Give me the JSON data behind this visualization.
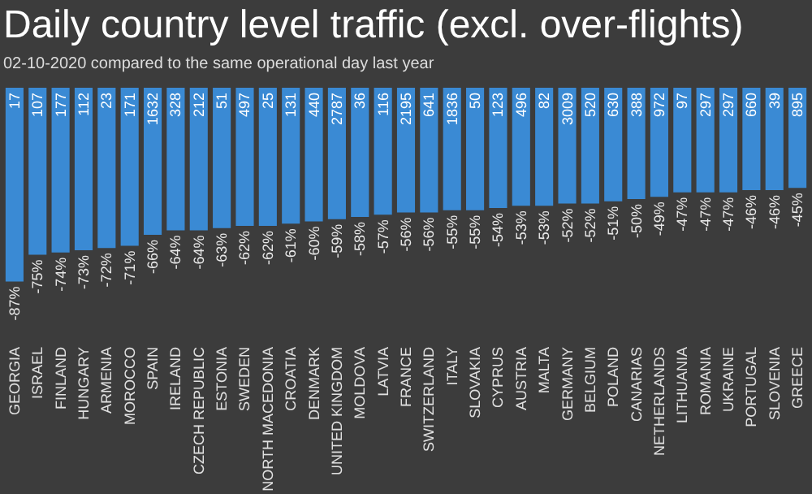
{
  "chart_data": {
    "type": "bar",
    "title": "Daily country level traffic (excl. over-flights)",
    "subtitle": "02-10-2020 compared to the same operational day last year",
    "categories": [
      "GEORGIA",
      "ISRAEL",
      "FINLAND",
      "HUNGARY",
      "ARMENIA",
      "MOROCCO",
      "SPAIN",
      "IRELAND",
      "CZECH REPUBLIC",
      "ESTONIA",
      "SWEDEN",
      "NORTH MACEDONIA",
      "CROATIA",
      "DENMARK",
      "UNITED KINGDOM",
      "MOLDOVA",
      "LATVIA",
      "FRANCE",
      "SWITZERLAND",
      "ITALY",
      "SLOVAKIA",
      "CYPRUS",
      "AUSTRIA",
      "MALTA",
      "GERMANY",
      "BELGIUM",
      "POLAND",
      "CANARIAS",
      "NETHERLANDS",
      "LITHUANIA",
      "ROMANIA",
      "UKRAINE",
      "PORTUGAL",
      "SLOVENIA",
      "GREECE"
    ],
    "values": [
      -87,
      -75,
      -74,
      -73,
      -72,
      -71,
      -66,
      -64,
      -64,
      -63,
      -62,
      -62,
      -61,
      -60,
      -59,
      -58,
      -57,
      -56,
      -56,
      -55,
      -55,
      -54,
      -53,
      -53,
      -52,
      -52,
      -51,
      -50,
      -49,
      -47,
      -47,
      -47,
      -46,
      -46,
      -45
    ],
    "value_labels": [
      "-87%",
      "-75%",
      "-74%",
      "-73%",
      "-72%",
      "-71%",
      "-66%",
      "-64%",
      "-64%",
      "-63%",
      "-62%",
      "-62%",
      "-61%",
      "-60%",
      "-59%",
      "-58%",
      "-57%",
      "-56%",
      "-56%",
      "-55%",
      "-55%",
      "-54%",
      "-53%",
      "-53%",
      "-52%",
      "-52%",
      "-51%",
      "-50%",
      "-49%",
      "-47%",
      "-47%",
      "-47%",
      "-46%",
      "-46%",
      "-45%"
    ],
    "color": "#3a8ad4",
    "annotations": [
      {
        "text": "17",
        "x": "GEORGIA",
        "y": 0
      },
      {
        "text": "107",
        "x": "ISRAEL",
        "y": 0
      },
      {
        "text": "177",
        "x": "FINLAND",
        "y": 0
      },
      {
        "text": "112",
        "x": "HUNGARY",
        "y": 0
      },
      {
        "text": "23",
        "x": "ARMENIA",
        "y": 0
      },
      {
        "text": "171",
        "x": "MOROCCO",
        "y": 0
      },
      {
        "text": "1632",
        "x": "SPAIN",
        "y": 0
      },
      {
        "text": "328",
        "x": "IRELAND",
        "y": 0
      },
      {
        "text": "212",
        "x": "CZECH REPUBLIC",
        "y": 0
      },
      {
        "text": "51",
        "x": "ESTONIA",
        "y": 0
      },
      {
        "text": "497",
        "x": "SWEDEN",
        "y": 0
      },
      {
        "text": "25",
        "x": "NORTH MACEDONIA",
        "y": 0
      },
      {
        "text": "131",
        "x": "CROATIA",
        "y": 0
      },
      {
        "text": "440",
        "x": "DENMARK",
        "y": 0
      },
      {
        "text": "2787",
        "x": "UNITED KINGDOM",
        "y": 0
      },
      {
        "text": "36",
        "x": "MOLDOVA",
        "y": 0
      },
      {
        "text": "116",
        "x": "LATVIA",
        "y": 0
      },
      {
        "text": "2195",
        "x": "FRANCE",
        "y": 0
      },
      {
        "text": "641",
        "x": "SWITZERLAND",
        "y": 0
      },
      {
        "text": "1836",
        "x": "ITALY",
        "y": 0
      },
      {
        "text": "50",
        "x": "SLOVAKIA",
        "y": 0
      },
      {
        "text": "123",
        "x": "CYPRUS",
        "y": 0
      },
      {
        "text": "496",
        "x": "AUSTRIA",
        "y": 0
      },
      {
        "text": "82",
        "x": "MALTA",
        "y": 0
      },
      {
        "text": "3009",
        "x": "GERMANY",
        "y": 0
      },
      {
        "text": "520",
        "x": "BELGIUM",
        "y": 0
      },
      {
        "text": "630",
        "x": "POLAND",
        "y": 0
      },
      {
        "text": "388",
        "x": "CANARIAS",
        "y": 0
      },
      {
        "text": "972",
        "x": "NETHERLANDS",
        "y": 0
      },
      {
        "text": "97",
        "x": "LITHUANIA",
        "y": 0
      },
      {
        "text": "297",
        "x": "ROMANIA",
        "y": 0
      },
      {
        "text": "297",
        "x": "UKRAINE",
        "y": 0
      },
      {
        "text": "660",
        "x": "PORTUGAL",
        "y": 0
      },
      {
        "text": "39",
        "x": "SLOVENIA",
        "y": 0
      },
      {
        "text": "895",
        "x": "GREECE",
        "y": 0
      }
    ]
  }
}
